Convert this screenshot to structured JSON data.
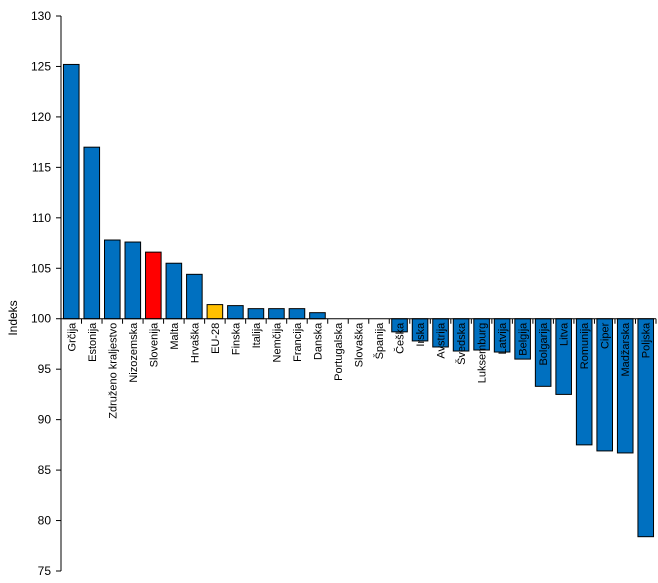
{
  "chart_data": {
    "type": "bar",
    "title": "",
    "xlabel": "",
    "ylabel": "Indeks",
    "ylim": [
      75,
      130
    ],
    "yticks": [
      75,
      80,
      85,
      90,
      95,
      100,
      105,
      110,
      115,
      120,
      125,
      130
    ],
    "baseline": 100,
    "grid": false,
    "categories": [
      "Grčija",
      "Estonija",
      "Združeno kraljestvo",
      "Nizozemska",
      "Slovenija",
      "Malta",
      "Hrvaška",
      "EU-28",
      "Finska",
      "Italija",
      "Nemčija",
      "Francija",
      "Danska",
      "Portugalska",
      "Slovaška",
      "Španija",
      "Češka",
      "Irska",
      "Avstrija",
      "Švedska",
      "Luksemburg",
      "Latvija",
      "Belgija",
      "Bolgarija",
      "Litva",
      "Romunija",
      "Ciper",
      "Madžarska",
      "Poljska"
    ],
    "values": [
      125.2,
      117.0,
      107.8,
      107.6,
      106.6,
      105.5,
      104.4,
      101.4,
      101.3,
      101.0,
      101.0,
      101.0,
      100.6,
      100.0,
      100.0,
      100.0,
      98.7,
      97.8,
      97.2,
      96.8,
      96.9,
      96.7,
      96.0,
      93.3,
      92.5,
      87.5,
      86.9,
      86.7,
      78.4
    ],
    "colors": {
      "default": "#0070C0",
      "Slovenija": "#FF0000",
      "EU-28": "#FFC000",
      "stroke": "#000000",
      "axis": "#000000"
    }
  }
}
